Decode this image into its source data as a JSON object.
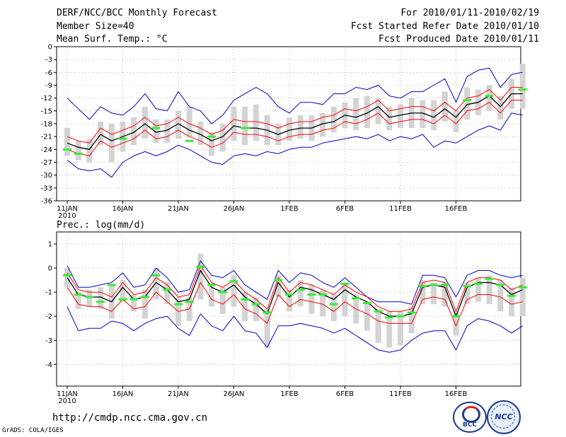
{
  "header": {
    "title": "DERF/NCC/BCC Monthly Forecast",
    "member_size": "Member Size=40",
    "variable": "Mean Surf. Temp.: °C",
    "for_range": "For 2010/01/11-2010/02/19",
    "fcst_started": "Fcst Started Refer Date 2010/01/10",
    "fcst_produced": "Fcst Produced Date 2010/01/11"
  },
  "footer": {
    "url": "http://cmdp.ncc.cma.gov.cn",
    "grads": "GrADS: COLA/IGES",
    "logo_bcc": "BCC",
    "logo_ncc": "NCC"
  },
  "colors": {
    "mean": "#000000",
    "spread": "#ff0000",
    "range": "#0000cc",
    "box": "#d3d3d3",
    "obs": "#33ee33",
    "grid": "#888888"
  },
  "chart_data": [
    {
      "type": "line",
      "title": "Mean Surf. Temp.: °C",
      "x_labels": [
        "11JAN",
        "16JAN",
        "21JAN",
        "26JAN",
        "1FEB",
        "6FEB",
        "11FEB",
        "16FEB"
      ],
      "x_year_label": "2010",
      "ylim": [
        -36,
        0
      ],
      "yticks": [
        0,
        -3,
        -6,
        -9,
        -12,
        -15,
        -18,
        -21,
        -24,
        -27,
        -30,
        -33,
        -36
      ],
      "series": [
        {
          "name": "ensemble mean",
          "values": [
            -22.5,
            -23.5,
            -24.0,
            -20.5,
            -22.0,
            -21.0,
            -20.0,
            -18.0,
            -20.0,
            -19.5,
            -18.0,
            -19.5,
            -20.5,
            -22.0,
            -21.0,
            -18.5,
            -19.0,
            -19.0,
            -19.5,
            -20.5,
            -19.5,
            -19.0,
            -19.0,
            -18.0,
            -17.5,
            -16.0,
            -16.5,
            -15.5,
            -14.0,
            -16.5,
            -16.0,
            -15.5,
            -15.5,
            -16.5,
            -14.5,
            -16.5,
            -13.5,
            -13.0,
            -11.5,
            -14.0,
            -11.0,
            -11.0
          ]
        },
        {
          "name": "mean + spread",
          "values": [
            -21.0,
            -22.0,
            -22.5,
            -19.0,
            -20.5,
            -19.5,
            -18.5,
            -16.5,
            -18.5,
            -18.0,
            -16.5,
            -18.0,
            -19.0,
            -20.5,
            -19.5,
            -17.0,
            -17.5,
            -17.5,
            -18.0,
            -19.0,
            -18.0,
            -17.5,
            -17.5,
            -16.5,
            -16.0,
            -14.5,
            -15.0,
            -14.0,
            -12.5,
            -15.0,
            -14.5,
            -14.0,
            -14.0,
            -15.0,
            -13.0,
            -15.0,
            -12.0,
            -11.5,
            -10.0,
            -12.5,
            -9.5,
            -9.5
          ]
        },
        {
          "name": "mean - spread",
          "values": [
            -24.0,
            -25.0,
            -25.5,
            -22.0,
            -23.5,
            -22.5,
            -21.5,
            -19.5,
            -21.5,
            -21.0,
            -19.5,
            -21.0,
            -22.0,
            -23.5,
            -22.5,
            -20.0,
            -20.5,
            -20.5,
            -21.0,
            -22.0,
            -21.0,
            -20.5,
            -20.5,
            -19.5,
            -19.0,
            -17.5,
            -18.0,
            -17.0,
            -15.5,
            -18.0,
            -17.5,
            -17.0,
            -17.0,
            -18.0,
            -16.0,
            -18.0,
            -15.0,
            -14.5,
            -13.0,
            -15.5,
            -12.5,
            -12.5
          ]
        },
        {
          "name": "ensemble max",
          "values": [
            -12.0,
            -14.5,
            -17.0,
            -14.0,
            -15.5,
            -16.0,
            -14.0,
            -11.0,
            -14.5,
            -15.0,
            -10.5,
            -14.0,
            -15.0,
            -18.0,
            -16.0,
            -12.5,
            -11.0,
            -9.5,
            -11.0,
            -14.0,
            -15.5,
            -13.0,
            -13.0,
            -13.5,
            -11.0,
            -11.0,
            -9.5,
            -10.0,
            -9.0,
            -11.5,
            -12.0,
            -10.5,
            -10.5,
            -9.0,
            -7.5,
            -13.0,
            -7.0,
            -5.5,
            -5.0,
            -9.5,
            -6.5,
            -6.0
          ]
        },
        {
          "name": "ensemble min",
          "values": [
            -26.5,
            -28.5,
            -29.0,
            -28.5,
            -30.5,
            -27.0,
            -25.5,
            -24.5,
            -25.5,
            -24.5,
            -23.0,
            -24.0,
            -25.5,
            -27.0,
            -27.5,
            -25.5,
            -25.0,
            -25.5,
            -24.5,
            -25.0,
            -24.0,
            -23.5,
            -23.5,
            -22.5,
            -22.0,
            -21.5,
            -21.0,
            -21.5,
            -20.5,
            -22.0,
            -21.0,
            -21.5,
            -20.5,
            -23.5,
            -22.0,
            -22.5,
            -21.0,
            -19.5,
            -18.5,
            -19.5,
            -15.5,
            -16.0
          ]
        },
        {
          "name": "box top",
          "values": [
            -19.0,
            -22.0,
            -21.5,
            -17.5,
            -18.0,
            -17.5,
            -16.5,
            -14.0,
            -17.0,
            -17.0,
            -15.0,
            -14.0,
            -17.5,
            -20.0,
            -18.0,
            -14.0,
            -14.0,
            -13.5,
            -16.0,
            -18.0,
            -16.5,
            -16.0,
            -16.0,
            -15.5,
            -14.0,
            -13.0,
            -12.0,
            -11.5,
            -12.0,
            -14.0,
            -13.5,
            -12.0,
            -12.5,
            -12.5,
            -10.5,
            -15.0,
            -9.5,
            -10.0,
            -9.0,
            -11.5,
            -7.5,
            -4.0
          ]
        },
        {
          "name": "box bottom",
          "values": [
            -25.5,
            -26.5,
            -27.0,
            -23.0,
            -27.0,
            -24.5,
            -23.0,
            -21.5,
            -22.5,
            -22.5,
            -21.5,
            -21.0,
            -23.0,
            -25.5,
            -24.5,
            -22.0,
            -23.0,
            -22.0,
            -23.0,
            -23.0,
            -22.0,
            -21.5,
            -22.0,
            -21.0,
            -20.0,
            -19.0,
            -19.5,
            -19.0,
            -18.0,
            -19.5,
            -19.0,
            -19.0,
            -19.0,
            -19.5,
            -17.5,
            -20.0,
            -17.0,
            -16.0,
            -15.0,
            -17.0,
            -14.5,
            -14.5
          ]
        },
        {
          "name": "observed",
          "values": [
            -24.0,
            -25.0,
            null,
            null,
            null,
            -21.5,
            null,
            null,
            -19.0,
            null,
            null,
            -22.0,
            null,
            -21.0,
            null,
            null,
            -19.0,
            null,
            null,
            null,
            null,
            null,
            null,
            null,
            null,
            null,
            null,
            null,
            null,
            null,
            null,
            null,
            null,
            null,
            null,
            null,
            -12.5,
            null,
            -11.5,
            null,
            null,
            -10.0
          ]
        }
      ]
    },
    {
      "type": "line",
      "title": "Prec.: log(mm/d)",
      "x_labels": [
        "11JAN",
        "16JAN",
        "21JAN",
        "26JAN",
        "1FEB",
        "6FEB",
        "11FEB",
        "16FEB"
      ],
      "x_year_label": "2010",
      "ylim": [
        -4.9,
        1.5
      ],
      "yticks": [
        1,
        0,
        -1,
        -2,
        -3,
        -4
      ],
      "series": [
        {
          "name": "ensemble mean",
          "values": [
            -0.4,
            -1.1,
            -1.2,
            -1.2,
            -1.4,
            -0.8,
            -1.3,
            -1.2,
            -0.6,
            -0.9,
            -1.4,
            -1.3,
            -0.1,
            -0.8,
            -1.0,
            -0.7,
            -1.2,
            -1.5,
            -1.9,
            -0.6,
            -1.2,
            -0.8,
            -0.9,
            -1.1,
            -1.3,
            -0.9,
            -1.2,
            -1.4,
            -1.8,
            -2.0,
            -2.0,
            -1.9,
            -0.8,
            -0.7,
            -0.8,
            -2.0,
            -0.8,
            -0.6,
            -0.6,
            -0.7,
            -1.1,
            -0.9
          ]
        },
        {
          "name": "mean + spread",
          "values": [
            -0.2,
            -0.9,
            -1.0,
            -1.0,
            -1.2,
            -0.6,
            -1.1,
            -1.0,
            -0.4,
            -0.7,
            -1.2,
            -1.1,
            0.1,
            -0.6,
            -0.8,
            -0.5,
            -1.0,
            -1.3,
            -1.7,
            -0.4,
            -1.0,
            -0.6,
            -0.7,
            -0.9,
            -1.1,
            -0.7,
            -1.0,
            -1.2,
            -1.6,
            -1.8,
            -1.8,
            -1.7,
            -0.6,
            -0.5,
            -0.6,
            -1.8,
            -0.6,
            -0.4,
            -0.4,
            -0.5,
            -0.9,
            -0.7
          ]
        },
        {
          "name": "mean - spread",
          "values": [
            -0.8,
            -1.5,
            -1.6,
            -1.6,
            -1.8,
            -1.3,
            -1.7,
            -1.6,
            -1.0,
            -1.4,
            -1.8,
            -1.7,
            -0.6,
            -1.3,
            -1.5,
            -1.1,
            -1.7,
            -1.9,
            -2.3,
            -1.1,
            -1.6,
            -1.3,
            -1.4,
            -1.5,
            -1.8,
            -1.4,
            -1.7,
            -1.9,
            -2.2,
            -2.3,
            -2.3,
            -2.3,
            -1.3,
            -1.2,
            -1.3,
            -2.4,
            -1.3,
            -1.1,
            -1.1,
            -1.2,
            -1.5,
            -1.4
          ]
        },
        {
          "name": "ensemble max",
          "values": [
            0.1,
            -0.8,
            -0.8,
            -0.7,
            -0.6,
            -0.2,
            -0.8,
            -0.7,
            0.0,
            -0.4,
            -1.0,
            -0.9,
            0.3,
            -0.3,
            -0.4,
            -0.1,
            -0.7,
            -1.0,
            -1.3,
            -0.1,
            -0.6,
            -0.2,
            -0.3,
            -0.6,
            -0.8,
            -0.4,
            -0.8,
            -1.2,
            -1.4,
            -1.4,
            -1.4,
            -1.5,
            -0.3,
            -0.3,
            -0.4,
            -1.2,
            -0.3,
            -0.1,
            -0.1,
            -0.3,
            -0.4,
            -0.3
          ]
        },
        {
          "name": "ensemble min",
          "values": [
            -1.6,
            -2.6,
            -2.5,
            -2.5,
            -2.2,
            -2.3,
            -2.6,
            -2.3,
            -2.1,
            -2.0,
            -2.5,
            -2.8,
            -1.9,
            -2.4,
            -2.6,
            -2.0,
            -2.6,
            -2.7,
            -3.3,
            -2.4,
            -2.4,
            -2.3,
            -2.4,
            -2.5,
            -2.7,
            -2.5,
            -2.8,
            -3.1,
            -3.4,
            -3.5,
            -3.4,
            -3.0,
            -2.7,
            -2.6,
            -2.6,
            -3.4,
            -2.4,
            -2.1,
            -2.2,
            -2.4,
            -2.7,
            -2.4
          ]
        },
        {
          "name": "box top",
          "values": [
            0.0,
            -1.0,
            -0.9,
            -0.8,
            -0.7,
            -0.5,
            -1.1,
            -0.9,
            0.0,
            -0.6,
            -1.2,
            -1.2,
            0.6,
            -0.6,
            -0.8,
            -0.3,
            -1.0,
            -1.2,
            -1.7,
            -0.3,
            -0.9,
            -0.5,
            -0.7,
            -0.9,
            -1.1,
            -0.7,
            -1.1,
            -1.4,
            -1.7,
            -1.8,
            -1.8,
            -1.6,
            -0.5,
            -0.6,
            -0.6,
            -1.8,
            -0.6,
            -0.4,
            -0.3,
            -0.5,
            -0.8,
            -0.4
          ]
        },
        {
          "name": "box bottom",
          "values": [
            -0.8,
            -1.7,
            -1.6,
            -1.7,
            -2.1,
            -1.4,
            -1.8,
            -2.1,
            -1.3,
            -1.5,
            -2.4,
            -2.2,
            -1.3,
            -1.6,
            -1.9,
            -1.6,
            -2.2,
            -2.2,
            -3.3,
            -1.2,
            -1.8,
            -1.6,
            -1.9,
            -2.0,
            -2.2,
            -2.0,
            -2.3,
            -2.6,
            -3.1,
            -3.3,
            -3.2,
            -2.7,
            -1.5,
            -1.5,
            -1.6,
            -2.8,
            -1.5,
            -1.4,
            -1.5,
            -1.8,
            -2.0,
            -2.0
          ]
        },
        {
          "name": "observed",
          "values": [
            -0.3,
            -1.1,
            -1.2,
            -1.4,
            -0.7,
            -1.3,
            -1.3,
            -1.2,
            -0.3,
            -0.9,
            -1.5,
            -1.4,
            0.05,
            -0.7,
            -1.0,
            -0.55,
            -1.3,
            -1.5,
            -1.85,
            -0.5,
            -1.1,
            -0.9,
            -1.1,
            -1.1,
            -1.5,
            -0.65,
            -1.25,
            -1.45,
            -1.8,
            -2.05,
            -2.0,
            -1.85,
            -0.75,
            -0.7,
            -0.7,
            -2.0,
            -0.75,
            -0.65,
            -0.45,
            -0.7,
            -1.15,
            -0.8
          ]
        }
      ]
    }
  ]
}
